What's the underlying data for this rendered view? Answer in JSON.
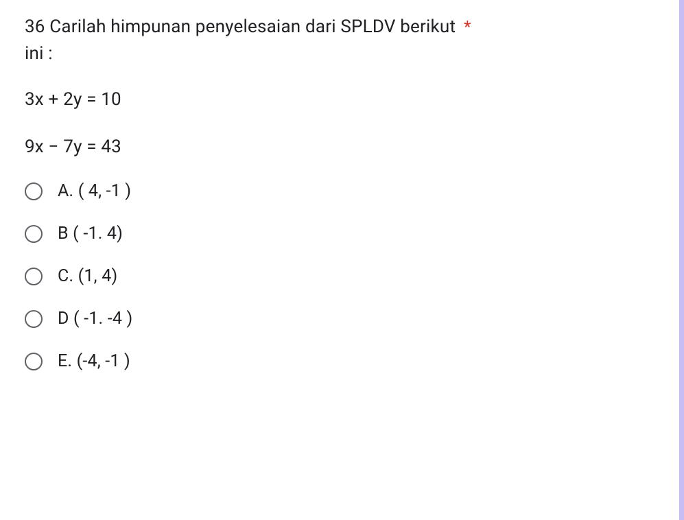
{
  "question": {
    "number": "36",
    "text_line1": "36 Carilah himpunan penyelesaian dari SPLDV berikut",
    "text_line2": "ini :",
    "asterisk": "*",
    "equations": [
      "3x + 2y = 10",
      "9x − 7y = 43"
    ],
    "options": [
      {
        "label": "A. ( 4, -1 )"
      },
      {
        "label": "B ( -1. 4)"
      },
      {
        "label": "C. (1, 4)"
      },
      {
        "label": "D ( -1. -4 )"
      },
      {
        "label": "E. (-4, -1 )"
      }
    ]
  },
  "colors": {
    "text": "#202124",
    "required": "#d93025",
    "radio_border": "#5f6368",
    "side_border": "#c9bdf5",
    "background": "#ffffff"
  },
  "typography": {
    "question_fontsize": 26,
    "equation_fontsize": 26,
    "option_fontsize": 25
  }
}
